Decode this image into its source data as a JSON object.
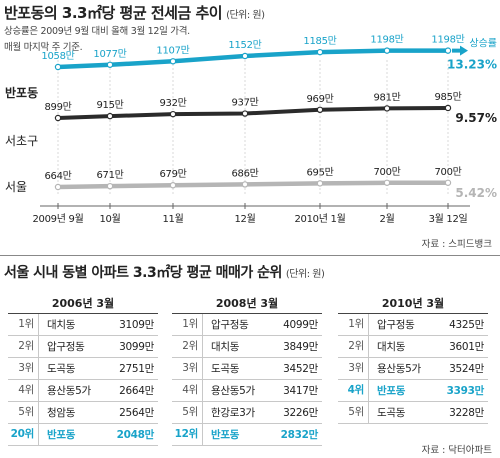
{
  "header": {
    "title": "반포동의 3.3㎡당 평균 전세금 추이",
    "unit": "(단위: 원)",
    "note_line1": "상승률은 2009년 9월 대비 올해  3월 12일 가격.",
    "note_line2": "매월 마지막 주 기준."
  },
  "chart_data": {
    "type": "line",
    "title": "반포동의 3.3㎡당 평균 전세금 추이",
    "ylabel": "",
    "categories": [
      "2009년 9월",
      "10월",
      "11월",
      "12월",
      "2010년 1월",
      "2월",
      "3월 12일"
    ],
    "series": [
      {
        "name": "반포동",
        "values": [
          1058,
          1077,
          1107,
          1152,
          1185,
          1198,
          1198
        ],
        "labels": [
          "1058만",
          "1077만",
          "1107만",
          "1152만",
          "1185만",
          "1198만",
          "1198만"
        ],
        "color": "#19a3c9",
        "rate": "13.23%"
      },
      {
        "name": "서초구",
        "values": [
          899,
          915,
          932,
          937,
          969,
          981,
          985
        ],
        "labels": [
          "899만",
          "915만",
          "932만",
          "937만",
          "969만",
          "981만",
          "985만"
        ],
        "color": "#2b2b2b",
        "rate": "9.57%"
      },
      {
        "name": "서울",
        "values": [
          664,
          671,
          679,
          686,
          695,
          700,
          700
        ],
        "labels": [
          "664만",
          "671만",
          "679만",
          "686만",
          "695만",
          "700만",
          "700만"
        ],
        "color": "#b5b5b5",
        "rate": "5.42%"
      }
    ],
    "rate_label": "상승률",
    "source": "자료 : 스피드뱅크"
  },
  "rankings": {
    "title": "서울 시내 동별 아파트 3.3㎡당 평균 매매가 순위",
    "unit": "(단위: 원)",
    "source": "자료 : 닥터아파트",
    "highlight_color": "#19a3c9",
    "tables": [
      {
        "year": "2006년 3월",
        "rows": [
          {
            "rank": "1위",
            "name": "대치동",
            "price": "3109만",
            "highlight": false
          },
          {
            "rank": "2위",
            "name": "압구정동",
            "price": "3099만",
            "highlight": false
          },
          {
            "rank": "3위",
            "name": "도곡동",
            "price": "2751만",
            "highlight": false
          },
          {
            "rank": "4위",
            "name": "용산동5가",
            "price": "2664만",
            "highlight": false
          },
          {
            "rank": "5위",
            "name": "청암동",
            "price": "2564만",
            "highlight": false
          },
          {
            "rank": "20위",
            "name": "반포동",
            "price": "2048만",
            "highlight": true
          }
        ]
      },
      {
        "year": "2008년 3월",
        "rows": [
          {
            "rank": "1위",
            "name": "압구정동",
            "price": "4099만",
            "highlight": false
          },
          {
            "rank": "2위",
            "name": "대치동",
            "price": "3849만",
            "highlight": false
          },
          {
            "rank": "3위",
            "name": "도곡동",
            "price": "3452만",
            "highlight": false
          },
          {
            "rank": "4위",
            "name": "용산동5가",
            "price": "3417만",
            "highlight": false
          },
          {
            "rank": "5위",
            "name": "한강로3가",
            "price": "3226만",
            "highlight": false
          },
          {
            "rank": "12위",
            "name": "반포동",
            "price": "2832만",
            "highlight": true
          }
        ]
      },
      {
        "year": "2010년 3월",
        "rows": [
          {
            "rank": "1위",
            "name": "압구정동",
            "price": "4325만",
            "highlight": false
          },
          {
            "rank": "2위",
            "name": "대치동",
            "price": "3601만",
            "highlight": false
          },
          {
            "rank": "3위",
            "name": "용산동5가",
            "price": "3524만",
            "highlight": false
          },
          {
            "rank": "4위",
            "name": "반포동",
            "price": "3393만",
            "highlight": true
          },
          {
            "rank": "5위",
            "name": "도곡동",
            "price": "3228만",
            "highlight": false
          }
        ]
      }
    ]
  }
}
